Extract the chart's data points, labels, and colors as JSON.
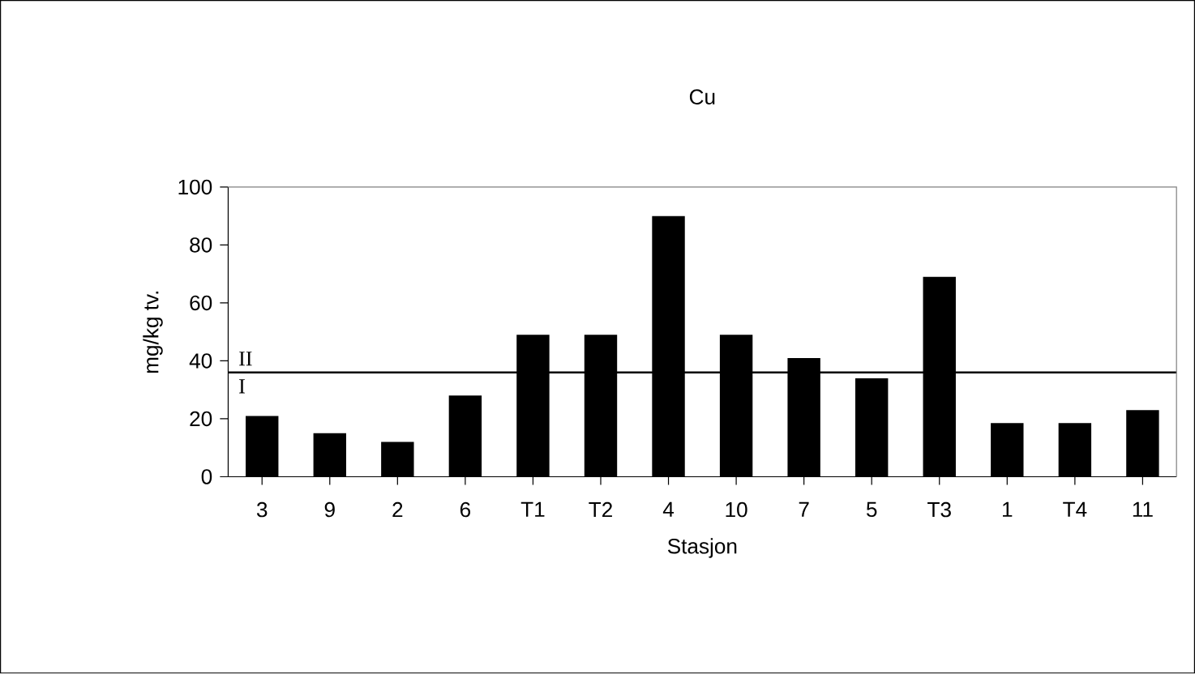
{
  "chart_data": {
    "type": "bar",
    "title": "Cu",
    "xlabel": "Stasjon",
    "ylabel": "mg/kg tv.",
    "categories": [
      "3",
      "9",
      "2",
      "6",
      "T1",
      "T2",
      "4",
      "10",
      "7",
      "5",
      "T3",
      "1",
      "T4",
      "11"
    ],
    "values": [
      21,
      15,
      12,
      28,
      49,
      49,
      90,
      49,
      41,
      34,
      69,
      18.5,
      18.5,
      23
    ],
    "color": "#000000",
    "ylim": [
      0,
      100
    ],
    "yticks": [
      0,
      20,
      40,
      60,
      80,
      100
    ],
    "ref_lines": [
      {
        "axis": "y",
        "value": 36,
        "color": "#000000"
      }
    ],
    "annotations": [
      "II",
      "I"
    ]
  }
}
